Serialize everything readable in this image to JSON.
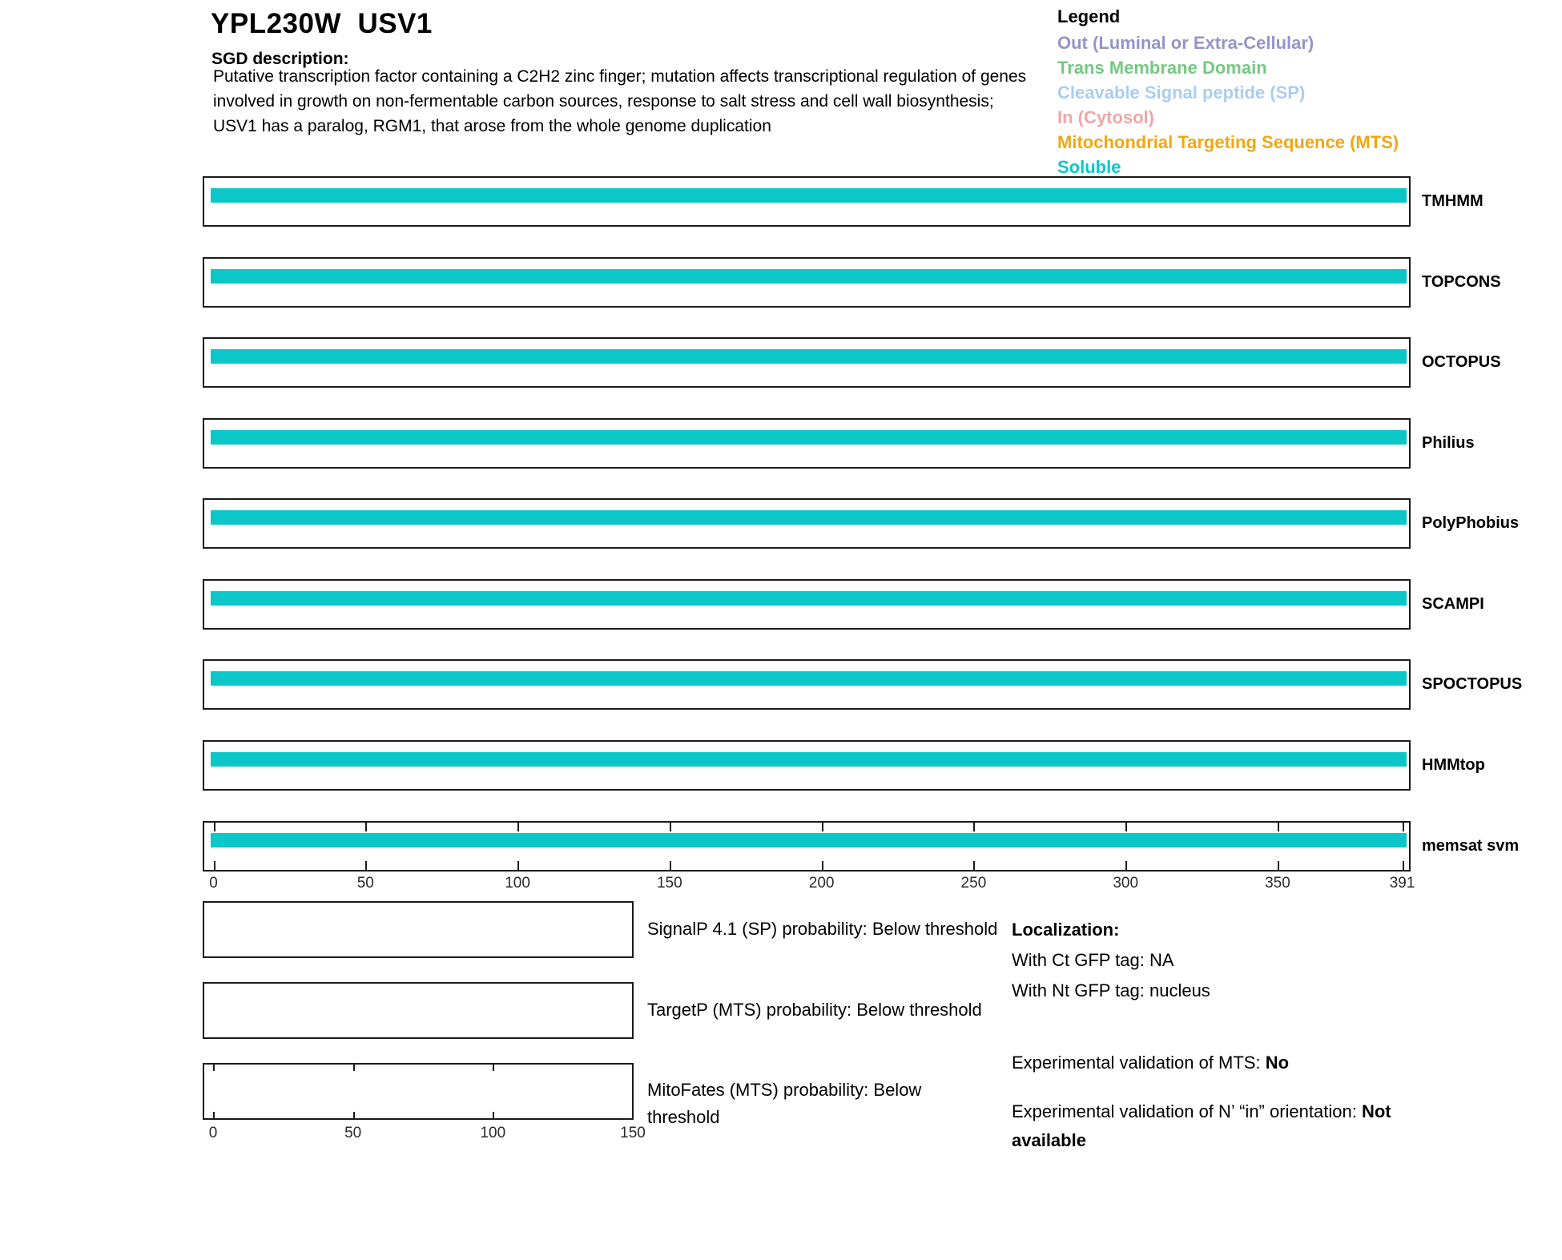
{
  "header": {
    "title": "YPL230W  USV1",
    "sgd_label": "SGD description:",
    "description_lines": [
      "Putative transcription factor containing a C2H2 zinc finger; mutation affects transcriptional regulation of genes",
      "involved in growth on non-fermentable carbon sources, response to salt stress and cell wall biosynthesis;",
      "USV1 has a paralog, RGM1, that arose from the whole genome duplication"
    ]
  },
  "legend": {
    "title": "Legend",
    "items": [
      {
        "label": "Out (Luminal or Extra-Cellular)",
        "color": "#9693C8"
      },
      {
        "label": "Trans Membrane Domain",
        "color": "#74C982"
      },
      {
        "label": "Cleavable Signal peptide (SP)",
        "color": "#A9CDF0"
      },
      {
        "label": "In (Cytosol)",
        "color": "#F0A6A6"
      },
      {
        "label": "Mitochondrial Targeting Sequence (MTS)",
        "color": "#F0A713"
      },
      {
        "label": "Soluble",
        "color": "#0BC7C7"
      }
    ]
  },
  "colors": {
    "soluble_bar": "#0BC7C7",
    "box_border": "#1b1b1b"
  },
  "tracks": {
    "labels": [
      "TMHMM",
      "TOPCONS",
      "OCTOPUS",
      "Philius",
      "PolyPhobius",
      "SCAMPI",
      "SPOCTOPUS",
      "HMMtop",
      "memsat svm"
    ],
    "axis_ticks": [
      "0",
      "50",
      "100",
      "150",
      "200",
      "250",
      "300",
      "350",
      "391"
    ]
  },
  "probability_plots": {
    "axis_ticks": [
      "0",
      "50",
      "100",
      "150"
    ],
    "items": [
      {
        "caption_lines": [
          "SignalP 4.1 (SP) probability: Below threshold"
        ]
      },
      {
        "caption_lines": [
          "TargetP (MTS) probability: Below threshold"
        ]
      },
      {
        "caption_lines": [
          "MitoFates (MTS) probability: Below",
          "threshold"
        ]
      }
    ]
  },
  "info": {
    "localization_heading": "Localization:",
    "ct_line": "With Ct GFP tag: NA",
    "nt_line": "With Nt GFP tag: nucleus",
    "mts_prefix": "Experimental validation of MTS: ",
    "mts_value": "No",
    "orientation_prefix": "Experimental validation of N’ “in” orientation: ",
    "orientation_value": "Not available"
  },
  "chart_data": {
    "type": "bar",
    "title": "Membrane topology predictions for YPL230W USV1",
    "x_range": [
      0,
      391
    ],
    "axis_tick_values": [
      0,
      50,
      100,
      150,
      200,
      250,
      300,
      350,
      391
    ],
    "tracks": [
      {
        "name": "TMHMM",
        "prediction": "Soluble",
        "start": 1,
        "end": 391
      },
      {
        "name": "TOPCONS",
        "prediction": "Soluble",
        "start": 1,
        "end": 391
      },
      {
        "name": "OCTOPUS",
        "prediction": "Soluble",
        "start": 1,
        "end": 391
      },
      {
        "name": "Philius",
        "prediction": "Soluble",
        "start": 1,
        "end": 391
      },
      {
        "name": "PolyPhobius",
        "prediction": "Soluble",
        "start": 1,
        "end": 391
      },
      {
        "name": "SCAMPI",
        "prediction": "Soluble",
        "start": 1,
        "end": 391
      },
      {
        "name": "SPOCTOPUS",
        "prediction": "Soluble",
        "start": 1,
        "end": 391
      },
      {
        "name": "HMMtop",
        "prediction": "Soluble",
        "start": 1,
        "end": 391
      },
      {
        "name": "memsat svm",
        "prediction": "Soluble",
        "start": 1,
        "end": 391
      }
    ],
    "probability_plots": [
      {
        "name": "SignalP 4.1 (SP)",
        "status": "Below threshold",
        "x_range": [
          0,
          150
        ],
        "axis_tick_values": [
          0,
          50,
          100,
          150
        ]
      },
      {
        "name": "TargetP (MTS)",
        "status": "Below threshold",
        "x_range": [
          0,
          150
        ],
        "axis_tick_values": [
          0,
          50,
          100,
          150
        ]
      },
      {
        "name": "MitoFates (MTS)",
        "status": "Below threshold",
        "x_range": [
          0,
          150
        ],
        "axis_tick_values": [
          0,
          50,
          100,
          150
        ]
      }
    ]
  }
}
